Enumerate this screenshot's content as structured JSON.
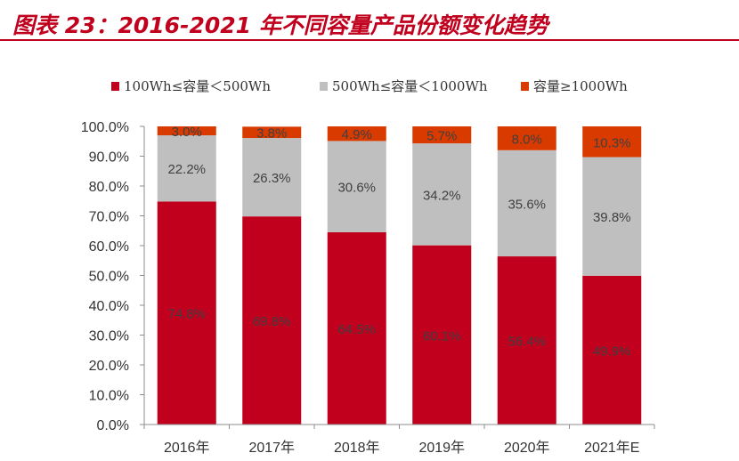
{
  "figure": {
    "title": "图表 23：2016-2021 年不同容量产品份额变化趋势"
  },
  "colors": {
    "title": "#c0001d",
    "series": [
      "#c0001d",
      "#bfbfbf",
      "#d93a00"
    ]
  },
  "chart_data": {
    "type": "bar",
    "stacked": true,
    "percent": true,
    "categories": [
      "2016年",
      "2017年",
      "2018年",
      "2019年",
      "2020年",
      "2021年E"
    ],
    "series": [
      {
        "name": "100Wh≤容量＜500Wh",
        "values": [
          74.8,
          69.8,
          64.5,
          60.1,
          56.4,
          49.9
        ]
      },
      {
        "name": "500Wh≤容量＜1000Wh",
        "values": [
          22.2,
          26.3,
          30.6,
          34.2,
          35.6,
          39.8
        ]
      },
      {
        "name": "容量≥1000Wh",
        "values": [
          3.0,
          3.8,
          4.9,
          5.7,
          8.0,
          10.3
        ]
      }
    ],
    "data_labels": [
      [
        "74.8%",
        "69.8%",
        "64.5%",
        "60.1%",
        "56.4%",
        "49.9%"
      ],
      [
        "22.2%",
        "26.3%",
        "30.6%",
        "34.2%",
        "35.6%",
        "39.8%"
      ],
      [
        "3.0%",
        "3.8%",
        "4.9%",
        "5.7%",
        "8.0%",
        "10.3%"
      ]
    ],
    "yticks": [
      "0.0%",
      "10.0%",
      "20.0%",
      "30.0%",
      "40.0%",
      "50.0%",
      "60.0%",
      "70.0%",
      "80.0%",
      "90.0%",
      "100.0%"
    ],
    "ylim": [
      0,
      100
    ],
    "xlabel": "",
    "ylabel": "",
    "grid": false,
    "legend_position": "top"
  }
}
